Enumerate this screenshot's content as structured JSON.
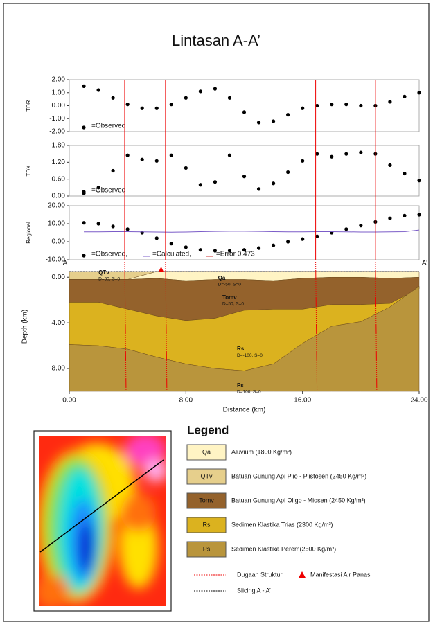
{
  "title": "Lintasan A-A’",
  "chart_data": [
    {
      "type": "scatter",
      "ylabel": "TDR",
      "xlim": [
        0,
        24
      ],
      "x": [
        1,
        2,
        3,
        4,
        5,
        6,
        7,
        8,
        9,
        10,
        11,
        12,
        13,
        14,
        15,
        16,
        17,
        18,
        19,
        20,
        21,
        22,
        23,
        24
      ],
      "series": [
        {
          "name": "=Observed",
          "color": "#000000",
          "values": [
            1.5,
            1.2,
            0.6,
            0.1,
            -0.2,
            -0.2,
            0.1,
            0.6,
            1.1,
            1.3,
            0.6,
            -0.5,
            -1.3,
            -1.2,
            -0.7,
            -0.2,
            0.0,
            0.1,
            0.1,
            0.0,
            0.0,
            0.3,
            0.7,
            1.0
          ]
        }
      ],
      "ylim": [
        -2,
        2
      ],
      "yticks": [
        {
          "value": -2,
          "label": "-2.00"
        },
        {
          "value": -1,
          "label": "-1.00"
        },
        {
          "value": 0,
          "label": "0.00"
        },
        {
          "value": 1,
          "label": "1.00"
        },
        {
          "value": 2,
          "label": "2.00"
        }
      ]
    },
    {
      "type": "scatter",
      "ylabel": "TDX",
      "xlim": [
        0,
        24
      ],
      "x": [
        1,
        2,
        3,
        4,
        5,
        6,
        7,
        8,
        9,
        10,
        11,
        12,
        13,
        14,
        15,
        16,
        17,
        18,
        19,
        20,
        21,
        22,
        23,
        24
      ],
      "series": [
        {
          "name": "=Observed",
          "color": "#000000",
          "values": [
            0.1,
            0.3,
            0.9,
            1.45,
            1.3,
            1.25,
            1.45,
            1.0,
            0.4,
            0.5,
            1.45,
            0.7,
            0.25,
            0.45,
            0.85,
            1.25,
            1.5,
            1.4,
            1.5,
            1.55,
            1.5,
            1.1,
            0.8,
            0.55
          ]
        }
      ],
      "ylim": [
        0,
        1.8
      ],
      "yticks": [
        {
          "value": 0,
          "label": "0.00"
        },
        {
          "value": 0.6,
          "label": "0.60"
        },
        {
          "value": 1.2,
          "label": "1.20"
        },
        {
          "value": 1.8,
          "label": "1.80"
        }
      ]
    },
    {
      "type": "scatter",
      "ylabel": "Regional",
      "xlim": [
        0,
        24
      ],
      "x": [
        1,
        2,
        3,
        4,
        5,
        6,
        7,
        8,
        9,
        10,
        11,
        12,
        13,
        14,
        15,
        16,
        17,
        18,
        19,
        20,
        21,
        22,
        23,
        24
      ],
      "series": [
        {
          "name": "=Observed,",
          "color": "#000000",
          "marker": "dot",
          "values": [
            10.5,
            10,
            8.5,
            7,
            5,
            2,
            -1,
            -3,
            -4.5,
            -5,
            -5,
            -4.5,
            -3.5,
            -2,
            0,
            1.5,
            3,
            5,
            7,
            9,
            11,
            13,
            14.5,
            15
          ]
        },
        {
          "name": "=Calculated,",
          "color": "#7b5cc8",
          "marker": "line",
          "values": [
            5.5,
            5.5,
            5.6,
            5.6,
            5.5,
            5.4,
            5.3,
            5.4,
            5.6,
            5.7,
            5.8,
            5.8,
            5.7,
            5.6,
            5.5,
            5.5,
            5.6,
            5.6,
            5.5,
            5.4,
            5.4,
            5.5,
            5.6,
            6.5
          ]
        }
      ],
      "annotation": "=Error 0.473",
      "ylim": [
        -10,
        20
      ],
      "yticks": [
        {
          "value": -10,
          "label": "-10.00"
        },
        {
          "value": 0,
          "label": "0.00"
        },
        {
          "value": 10,
          "label": "10.00"
        },
        {
          "value": 20,
          "label": "20.00"
        }
      ]
    },
    {
      "type": "section",
      "xlabel": "Distance (km)",
      "ylabel": "Depth (km)",
      "xlim": [
        0,
        24
      ],
      "ylim": [
        -1.35,
        10
      ],
      "x": [
        0,
        2,
        4,
        6,
        8,
        10,
        12,
        14,
        16,
        18,
        20,
        22,
        24
      ],
      "surface": [
        -0.5,
        -0.5,
        -0.5,
        -0.5,
        -0.5,
        -0.5,
        -0.5,
        -0.5,
        -0.5,
        -0.5,
        -0.5,
        -0.5,
        -0.5
      ],
      "series": [
        {
          "name": "QTv",
          "note": "D=50, S=0",
          "color": "#e6cf8c",
          "values": [
            0.2,
            0.2,
            0.2,
            -0.5,
            -0.5,
            -0.5,
            -0.5,
            -0.5,
            -0.5,
            -0.5,
            -0.5,
            -0.5,
            -0.5
          ]
        },
        {
          "name": "Qa",
          "note": "D=-50, S=0",
          "color": "#fff4c4",
          "values": [
            0.2,
            0.2,
            0.2,
            0.1,
            0.3,
            0.2,
            0.2,
            0.3,
            0.1,
            0.0,
            0.0,
            0.1,
            0.0
          ]
        },
        {
          "name": "Tomv",
          "note": "D=50, S=0",
          "color": "#94622c",
          "values": [
            2.2,
            2.2,
            2.8,
            3.4,
            3.8,
            3.6,
            2.9,
            2.8,
            2.8,
            2.4,
            2.4,
            2.3,
            1.0
          ]
        },
        {
          "name": "Rs",
          "note": "D=-100, S=0",
          "color": "#dbb21f",
          "values": [
            5.9,
            6.0,
            6.3,
            7.0,
            7.6,
            8.0,
            8.2,
            7.6,
            5.8,
            4.3,
            3.9,
            2.6,
            0.8
          ]
        },
        {
          "name": "Ps",
          "note": "D=100, S=0",
          "color": "#b9953c",
          "values": [
            10,
            10,
            10,
            10,
            10,
            10,
            10,
            10,
            10,
            10,
            10,
            10,
            10
          ]
        }
      ],
      "xticks": [
        {
          "value": 0,
          "label": "0.00"
        },
        {
          "value": 8,
          "label": "8.00"
        },
        {
          "value": 16,
          "label": "16.00"
        },
        {
          "value": 24,
          "label": "24.00"
        }
      ],
      "yticks": [
        {
          "value": 0,
          "label": "0.00"
        },
        {
          "value": 4,
          "label": "4.00"
        },
        {
          "value": 8,
          "label": "8.00"
        }
      ],
      "ends": [
        "A",
        "A’"
      ]
    }
  ],
  "structures": [
    3.8,
    6.6,
    16.9,
    21.0
  ],
  "manifestation_x": 6.3,
  "legend": {
    "title": "Legend",
    "items": [
      {
        "code": "Qa",
        "description": "Aluvium (1800 Kg/m³)",
        "color": "#fff4c4"
      },
      {
        "code": "QTv",
        "description": "Batuan Gunung Api Plio - Plistosen (2450 Kg/m³)",
        "color": "#e6cf8c"
      },
      {
        "code": "Tomv",
        "description": "Batuan Gunung Api Oligo - Miosen (2450 Kg/m³)",
        "color": "#94622c"
      },
      {
        "code": "Rs",
        "description": "Sedimen Klastika Trias (2300 Kg/m³)",
        "color": "#dbb21f"
      },
      {
        "code": "Ps",
        "description": "Sedimen Klastika Perem(2500 Kg/m³)",
        "color": "#b9953c"
      }
    ],
    "structure": "Dugaan Struktur",
    "manifestation": "Manifestasi Air Panas",
    "slicing": "Slicing A - A’"
  }
}
